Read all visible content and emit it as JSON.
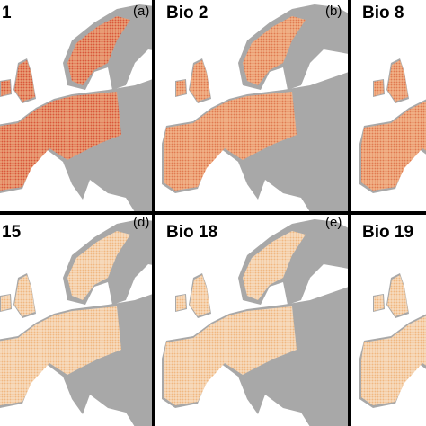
{
  "panels": [
    {
      "label": "1",
      "letter": "(a)"
    },
    {
      "label": "Bio 2",
      "letter": "(b)"
    },
    {
      "label": "Bio 8"
    },
    {
      "label": "15",
      "letter": "(d)"
    },
    {
      "label": "Bio 18",
      "letter": "(e)"
    },
    {
      "label": "Bio 19"
    }
  ]
}
